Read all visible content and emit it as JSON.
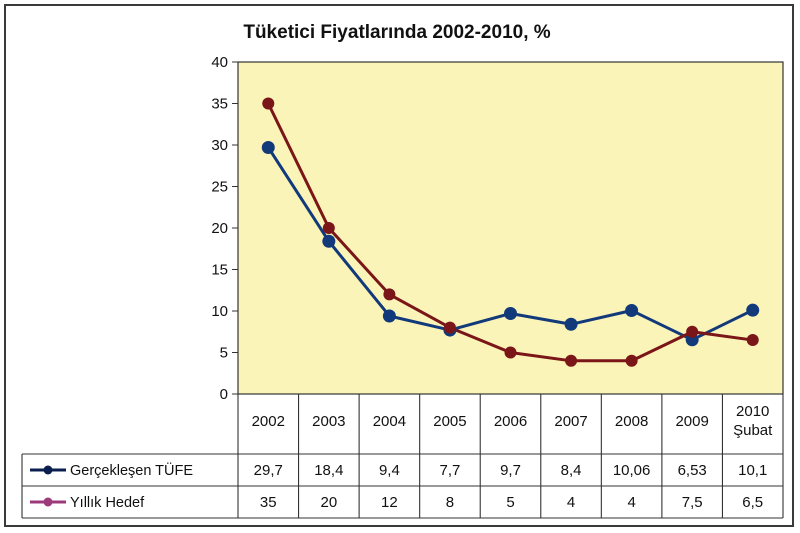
{
  "chart_data": {
    "type": "line",
    "title": "Tüketici Fiyatlarında 2002-2010, %",
    "categories": [
      {
        "line1": "2002",
        "line2": ""
      },
      {
        "line1": "2003",
        "line2": ""
      },
      {
        "line1": "2004",
        "line2": ""
      },
      {
        "line1": "2005",
        "line2": ""
      },
      {
        "line1": "2006",
        "line2": ""
      },
      {
        "line1": "2007",
        "line2": ""
      },
      {
        "line1": "2008",
        "line2": ""
      },
      {
        "line1": "2009",
        "line2": ""
      },
      {
        "line1": "2010",
        "line2": "Şubat"
      }
    ],
    "ylim": [
      0,
      40
    ],
    "yticks": [
      0,
      5,
      10,
      15,
      20,
      25,
      30,
      35,
      40
    ],
    "xlabel": "",
    "ylabel": "",
    "grid": false,
    "series": [
      {
        "name": "Gerçekleşen TÜFE",
        "values": [
          29.7,
          18.4,
          9.4,
          7.7,
          9.7,
          8.4,
          10.06,
          6.53,
          10.1
        ],
        "labels": [
          "29,7",
          "18,4",
          "9,4",
          "7,7",
          "9,7",
          "8,4",
          "10,06",
          "6,53",
          "10,1"
        ],
        "line_color": "#123a7a",
        "legend_color": "#0b1f4f"
      },
      {
        "name": "Yıllık Hedef",
        "values": [
          35,
          20,
          12,
          8,
          5,
          4,
          4,
          7.5,
          6.5
        ],
        "labels": [
          "35",
          "20",
          "12",
          "8",
          "5",
          "4",
          "4",
          "7,5",
          "6,5"
        ],
        "line_color": "#7a1518",
        "legend_color": "#9c3a7c"
      }
    ],
    "plot_background": "#fbf4b8"
  }
}
